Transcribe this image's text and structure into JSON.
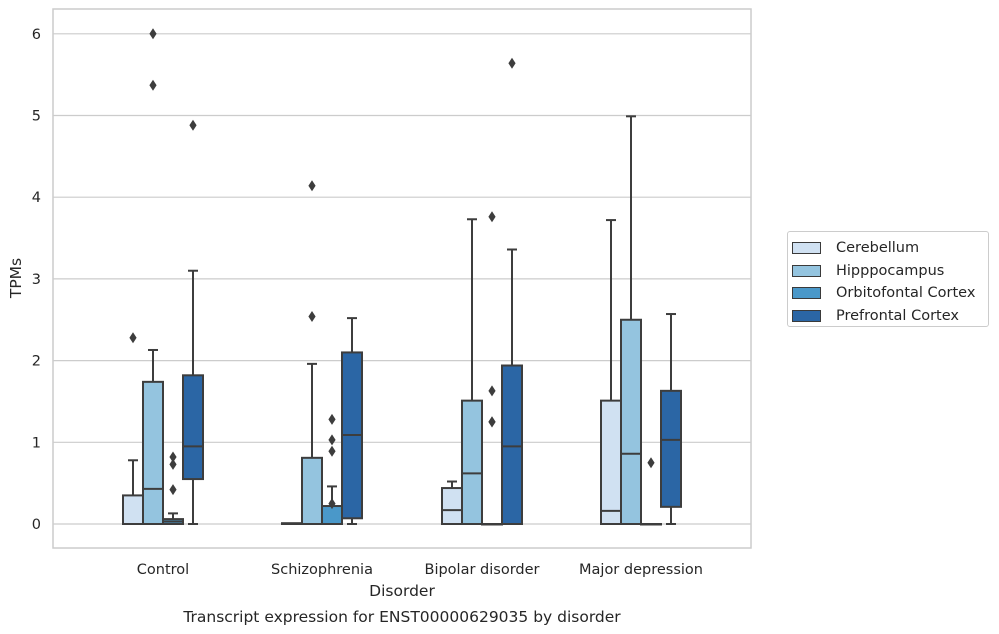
{
  "chart_data": {
    "type": "box",
    "title": "",
    "caption": "Transcript expression for ENST00000629035 by disorder",
    "xlabel": "Disorder",
    "ylabel": "TPMs",
    "ylim": [
      -0.3,
      6.3
    ],
    "yticks": [
      0,
      1,
      2,
      3,
      4,
      5,
      6
    ],
    "grid": "horizontal",
    "legend_position": "right",
    "categories": [
      "Control",
      "Schizophrenia",
      "Bipolar disorder",
      "Major depression"
    ],
    "series": [
      {
        "name": "Cerebellum",
        "color": "#d0e1f2",
        "boxes": [
          {
            "q1": 0,
            "median": 0,
            "q3": 0.35,
            "whisker_low": 0,
            "whisker_high": 0.78,
            "outliers": [
              2.28
            ]
          },
          {
            "q1": 0,
            "median": 0,
            "q3": 0.01,
            "whisker_low": 0,
            "whisker_high": 0.01,
            "outliers": []
          },
          {
            "q1": 0,
            "median": 0.17,
            "q3": 0.44,
            "whisker_low": 0,
            "whisker_high": 0.52,
            "outliers": []
          },
          {
            "q1": 0,
            "median": 0.16,
            "q3": 1.51,
            "whisker_low": 0,
            "whisker_high": 3.72,
            "outliers": []
          }
        ]
      },
      {
        "name": "Hipppocampus",
        "color": "#94c4df",
        "boxes": [
          {
            "q1": 0,
            "median": 0.43,
            "q3": 1.74,
            "whisker_low": 0,
            "whisker_high": 2.13,
            "outliers": [
              5.37,
              6.0
            ]
          },
          {
            "q1": 0,
            "median": 0,
            "q3": 0.81,
            "whisker_low": 0,
            "whisker_high": 1.96,
            "outliers": [
              2.54,
              4.14
            ]
          },
          {
            "q1": 0,
            "median": 0.62,
            "q3": 1.51,
            "whisker_low": 0,
            "whisker_high": 3.73,
            "outliers": []
          },
          {
            "q1": 0,
            "median": 0.86,
            "q3": 2.5,
            "whisker_low": 0,
            "whisker_high": 4.99,
            "outliers": []
          }
        ]
      },
      {
        "name": "Orbitofontal Cortex",
        "color": "#4a98c9",
        "boxes": [
          {
            "q1": 0,
            "median": 0.03,
            "q3": 0.06,
            "whisker_low": 0,
            "whisker_high": 0.13,
            "outliers": [
              0.42,
              0.73,
              0.82
            ]
          },
          {
            "q1": 0,
            "median": 0,
            "q3": 0.22,
            "whisker_low": 0,
            "whisker_high": 0.46,
            "outliers": [
              0.25,
              1.03,
              1.28,
              0.89
            ]
          },
          {
            "q1": 0,
            "median": 0,
            "q3": 0,
            "whisker_low": 0,
            "whisker_high": 0,
            "outliers": [
              1.25,
              1.25,
              1.63,
              3.76
            ]
          },
          {
            "q1": 0,
            "median": 0,
            "q3": 0,
            "whisker_low": 0,
            "whisker_high": 0,
            "outliers": [
              0.75
            ]
          }
        ]
      },
      {
        "name": "Prefrontal Cortex",
        "color": "#2b66a5",
        "boxes": [
          {
            "q1": 0.55,
            "median": 0.95,
            "q3": 1.82,
            "whisker_low": 0,
            "whisker_high": 3.1,
            "outliers": [
              4.88
            ]
          },
          {
            "q1": 0.07,
            "median": 1.09,
            "q3": 2.1,
            "whisker_low": 0,
            "whisker_high": 2.52,
            "outliers": []
          },
          {
            "q1": 0,
            "median": 0.95,
            "q3": 1.94,
            "whisker_low": 0,
            "whisker_high": 3.36,
            "outliers": [
              5.64
            ]
          },
          {
            "q1": 0.21,
            "median": 1.03,
            "q3": 1.63,
            "whisker_low": 0,
            "whisker_high": 2.57,
            "outliers": []
          }
        ]
      }
    ]
  }
}
